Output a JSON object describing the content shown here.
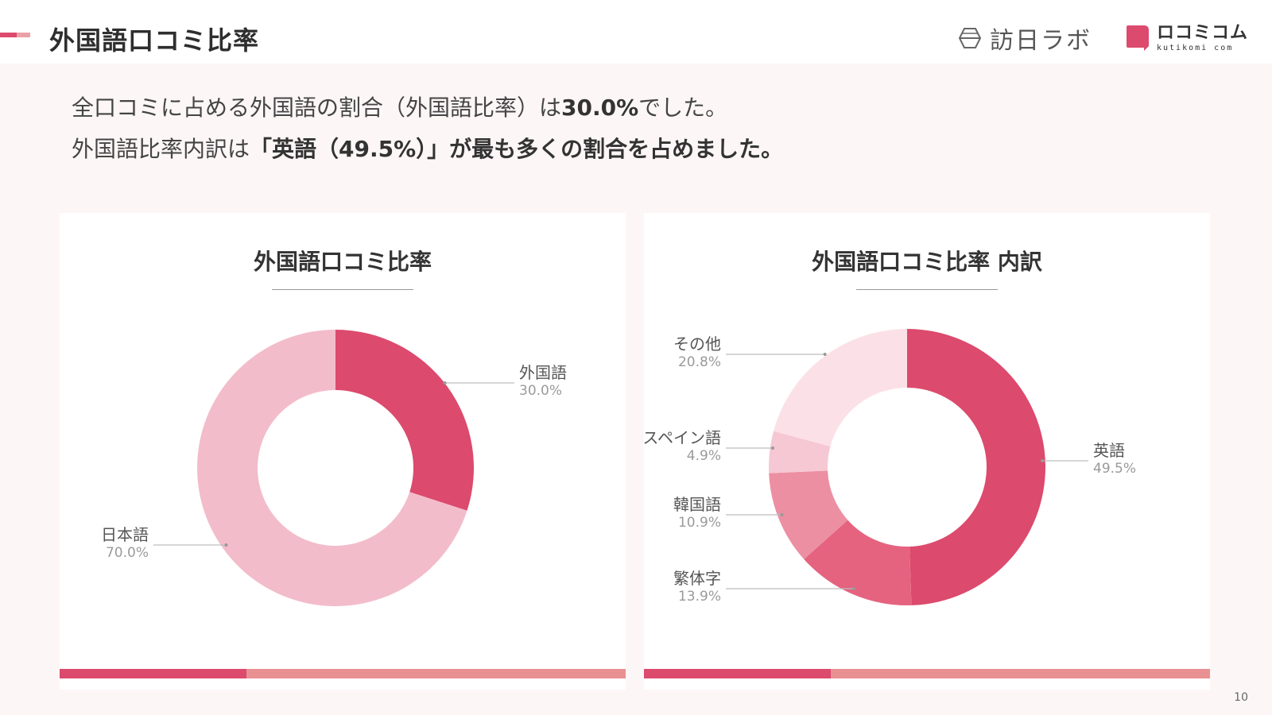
{
  "header": {
    "title": "外国語口コミ比率",
    "logo_houjin_text": "訪日ラボ",
    "logo_kuchi_main": "ロコミコム",
    "logo_kuchi_sub": "kutikomi com"
  },
  "summary": {
    "line1_pre": "全口コミに占める外国語の割合（外国語比率）は",
    "line1_bold": "30.0%",
    "line1_post": "でした。",
    "line2_pre": "外国語比率内訳は",
    "line2_bold": "「英語（49.5%）」が最も多くの割合を占めました。"
  },
  "colors": {
    "accent": "#dc4a6d",
    "accent_light": "#e99092",
    "background": "#fdf6f7"
  },
  "chart_data": [
    {
      "type": "pie",
      "donut": true,
      "title": "外国語口コミ比率",
      "slices": [
        {
          "label": "外国語",
          "value": 30.0,
          "pct_label": "30.0%",
          "color": "#dc4a6d"
        },
        {
          "label": "日本語",
          "value": 70.0,
          "pct_label": "70.0%",
          "color": "#f3bccb"
        }
      ]
    },
    {
      "type": "pie",
      "donut": true,
      "title": "外国語口コミ比率 内訳",
      "slices": [
        {
          "label": "英語",
          "value": 49.5,
          "pct_label": "49.5%",
          "color": "#dc4a6d"
        },
        {
          "label": "繁体字",
          "value": 13.9,
          "pct_label": "13.9%",
          "color": "#e5637f"
        },
        {
          "label": "韓国語",
          "value": 10.9,
          "pct_label": "10.9%",
          "color": "#ec8fa2"
        },
        {
          "label": "スペイン語",
          "value": 4.9,
          "pct_label": "4.9%",
          "color": "#f6c8d3"
        },
        {
          "label": "その他",
          "value": 20.8,
          "pct_label": "20.8%",
          "color": "#fbe1e7"
        }
      ]
    }
  ],
  "page_number": "10"
}
